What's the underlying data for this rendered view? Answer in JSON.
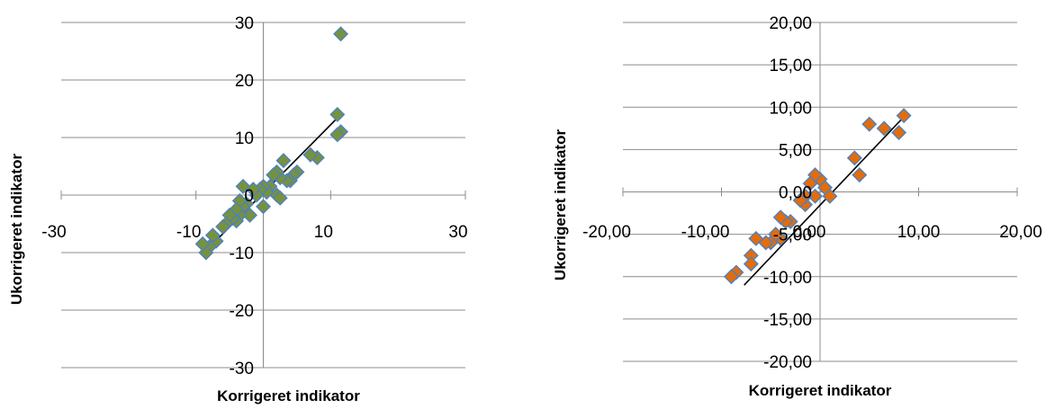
{
  "chart_data": [
    {
      "type": "scatter",
      "xlabel": "Korrigeret indikator",
      "ylabel": "Ukorrigeret indikator",
      "xlim": [
        -30,
        30
      ],
      "ylim": [
        -30,
        30
      ],
      "x_ticks": [
        "-30",
        "-10",
        "10",
        "30"
      ],
      "x_tick_values": [
        -30,
        -10,
        10,
        30
      ],
      "y_ticks": [
        "30",
        "20",
        "10",
        "0",
        "-10",
        "-20",
        "-30"
      ],
      "y_tick_values": [
        30,
        20,
        10,
        0,
        -10,
        -20,
        -30
      ],
      "marker_color": "#76923c",
      "marker_edge_color": "#4f81bd",
      "trendline": {
        "x": [
          -7.5,
          11.5
        ],
        "y": [
          -8.5,
          14
        ]
      },
      "series": [
        {
          "x": [
            11.5,
            11,
            11.5,
            11,
            8,
            7,
            5,
            4.5,
            4,
            3.5,
            3,
            2.5,
            2,
            2,
            1.5,
            1,
            0.5,
            0,
            0,
            -0.5,
            -1,
            -1.5,
            -2,
            -2.5,
            -3,
            -3,
            -3.5,
            -3.5,
            -4,
            -4,
            -4.5,
            -5,
            -5.5,
            -6,
            -7,
            -7.5,
            -8,
            -8.5,
            -9,
            2.5
          ],
          "y": [
            28,
            14,
            11,
            10.5,
            6.5,
            7,
            4,
            3.5,
            2.5,
            2.5,
            6,
            3,
            4,
            0,
            3.5,
            1.5,
            0.5,
            1.5,
            -2,
            1,
            0,
            1,
            -3.5,
            -1.5,
            1.5,
            -2,
            -1,
            -3.5,
            -2.5,
            -4.5,
            -4,
            -3.5,
            -5,
            -5.5,
            -8,
            -7,
            -9,
            -10,
            -8.5,
            -0.5
          ]
        }
      ]
    },
    {
      "type": "scatter",
      "xlabel": "Korrigeret indikator",
      "ylabel": "Ukorrigeret indikator",
      "xlim": [
        -20,
        20
      ],
      "ylim": [
        -20,
        20
      ],
      "x_ticks": [
        "-20,00",
        "-10,00",
        "0,00",
        "10,00",
        "20,00"
      ],
      "x_tick_values": [
        -20,
        -10,
        0,
        10,
        20
      ],
      "y_ticks": [
        "20,00",
        "15,00",
        "10,00",
        "5,00",
        "0,00",
        "-5,00",
        "-10,00",
        "-15,00",
        "-20,00"
      ],
      "y_tick_values": [
        20,
        15,
        10,
        5,
        0,
        -5,
        -10,
        -15,
        -20
      ],
      "marker_color": "#e46c0a",
      "marker_edge_color": "#4f81bd",
      "trendline": {
        "x": [
          -7.7,
          8.7
        ],
        "y": [
          -11,
          9.1
        ]
      },
      "series": [
        {
          "x": [
            8.5,
            8,
            6.5,
            5,
            4,
            3.5,
            1,
            0.5,
            0,
            -0.5,
            -0.5,
            -1,
            -1.5,
            -1.5,
            -2,
            -3,
            -3.5,
            -4,
            -4,
            -4.5,
            -5,
            -5.5,
            -6.5,
            -7,
            -7,
            -8.5,
            -9
          ],
          "y": [
            9,
            7,
            7.5,
            8,
            2,
            4,
            -0.5,
            0.5,
            1.5,
            2,
            -0.5,
            1,
            -1.5,
            -0.5,
            -1,
            -3.5,
            -3.5,
            -3,
            -5.5,
            -5,
            -6,
            -6,
            -5.5,
            -7.5,
            -8.5,
            -9.5,
            -10
          ]
        }
      ]
    }
  ]
}
